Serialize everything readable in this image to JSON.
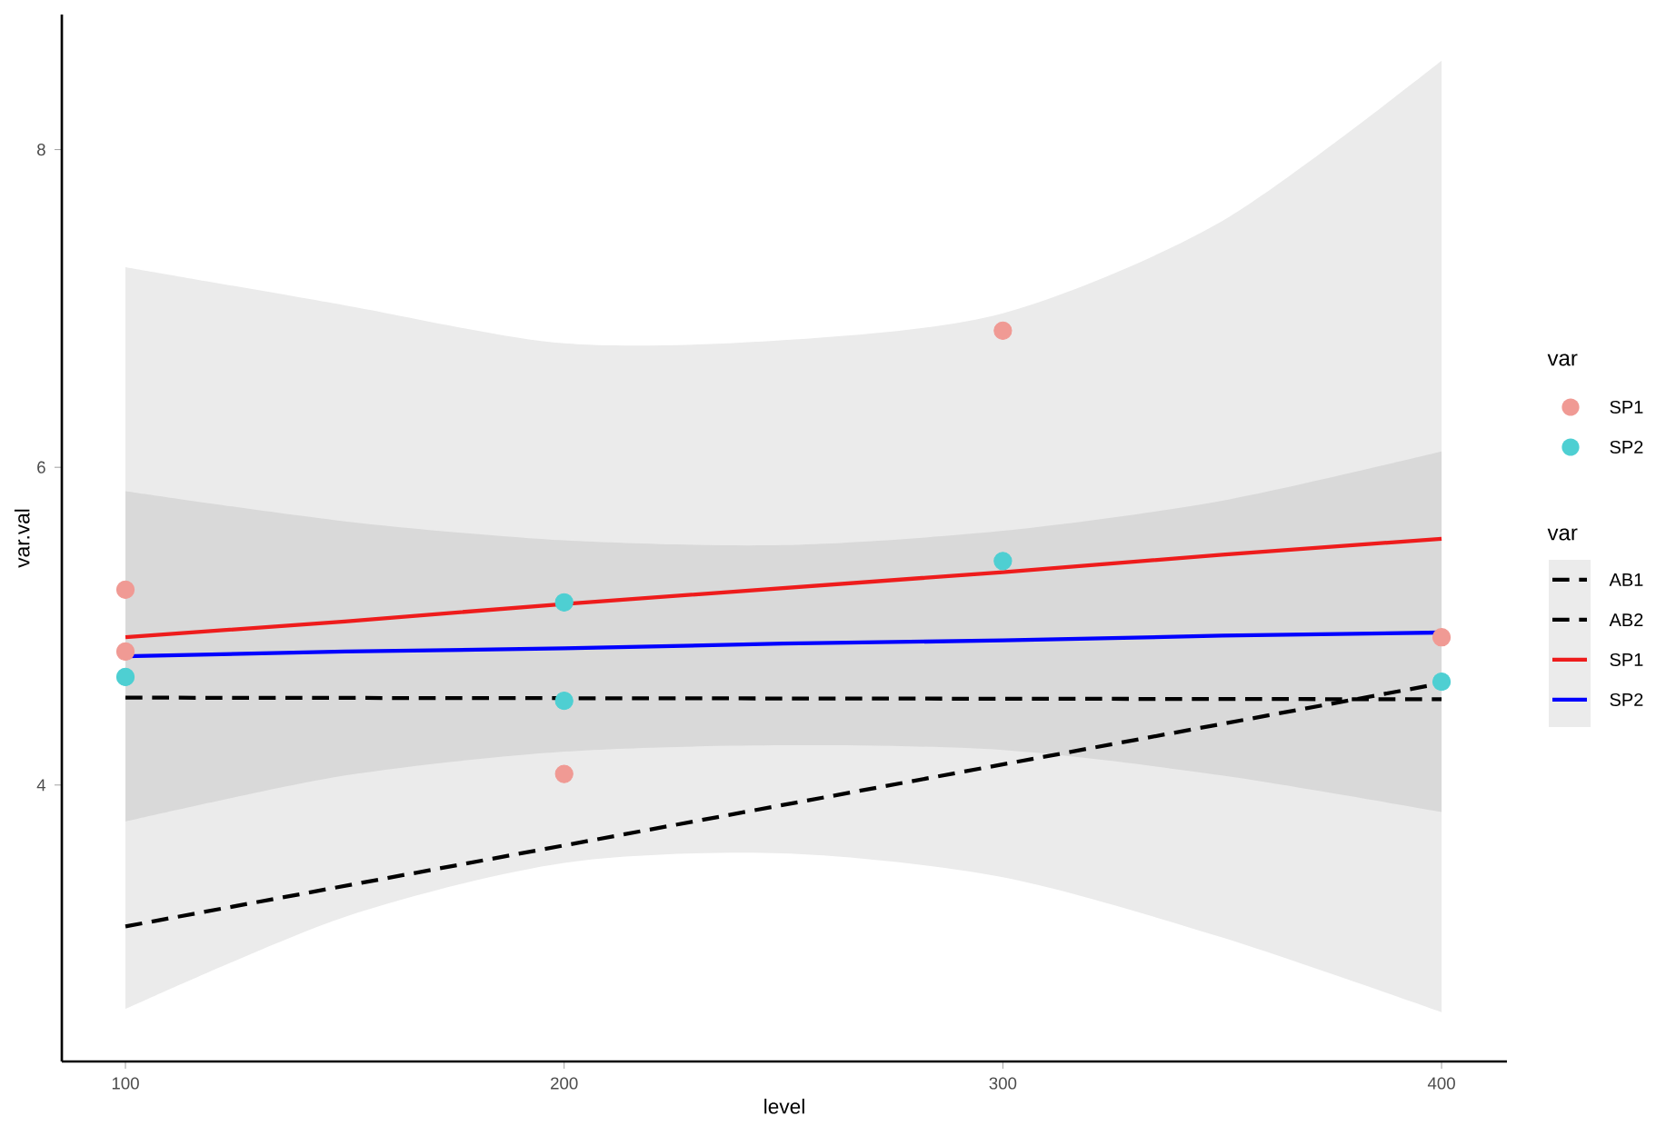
{
  "chart_data": {
    "type": "scatter",
    "xlabel": "level",
    "ylabel": "var.val",
    "legend_title": "var",
    "legend": "right",
    "xlim": [
      85.5,
      414.9
    ],
    "ylim": [
      2.26,
      8.85
    ],
    "xticks": [
      100,
      200,
      300,
      400
    ],
    "yticks": [
      4,
      6,
      8
    ],
    "grid": false,
    "series": [
      {
        "name": "SP1",
        "marker": "circle",
        "color": "#f09a94",
        "x": [
          100,
          100,
          200,
          300,
          400
        ],
        "values": [
          5.23,
          4.84,
          4.07,
          6.86,
          4.93
        ]
      },
      {
        "name": "SP2",
        "marker": "circle",
        "color": "#4ecfd2",
        "x": [
          100,
          200,
          200,
          300,
          400
        ],
        "values": [
          4.68,
          5.15,
          4.53,
          5.41,
          4.65
        ]
      },
      {
        "name": "AB1",
        "type": "line",
        "marker": "none",
        "line_style": "dashed",
        "color": "#000000",
        "x": [
          100,
          400
        ],
        "values": [
          4.55,
          4.54
        ]
      },
      {
        "name": "AB2",
        "type": "line",
        "marker": "none",
        "line_style": "dashed",
        "color": "#000000",
        "x": [
          100,
          400
        ],
        "values": [
          3.11,
          4.64
        ]
      },
      {
        "name": "SP1",
        "type": "line",
        "marker": "none",
        "line_style": "solid",
        "color": "#ee1c1c",
        "x": [
          100,
          150,
          200,
          250,
          300,
          350,
          400
        ],
        "values": [
          4.93,
          5.03,
          5.14,
          5.24,
          5.34,
          5.45,
          5.55
        ],
        "lower": [
          2.59,
          3.17,
          3.51,
          3.57,
          3.42,
          3.04,
          2.57
        ],
        "upper": [
          7.26,
          7.02,
          6.78,
          6.8,
          6.97,
          7.55,
          8.56
        ]
      },
      {
        "name": "SP2",
        "type": "line",
        "marker": "none",
        "line_style": "solid",
        "color": "#0000ff",
        "x": [
          100,
          150,
          200,
          250,
          300,
          350,
          400
        ],
        "values": [
          4.81,
          4.84,
          4.86,
          4.89,
          4.91,
          4.94,
          4.96
        ],
        "lower": [
          3.77,
          4.06,
          4.21,
          4.25,
          4.22,
          4.06,
          3.83
        ],
        "upper": [
          5.85,
          5.66,
          5.54,
          5.51,
          5.6,
          5.79,
          6.1
        ]
      }
    ]
  }
}
